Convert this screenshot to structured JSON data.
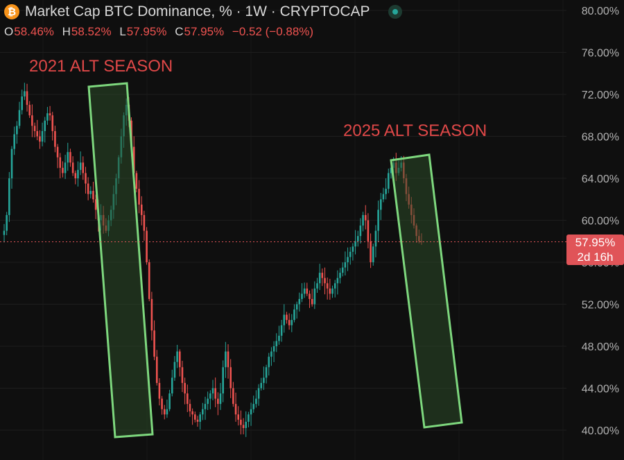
{
  "header": {
    "coin_icon": "bitcoin-icon",
    "coin_glyph": "₿",
    "coin_color": "#f7931a",
    "title": "Market Cap BTC Dominance, % · 1W · CRYPTOCAP",
    "status_dot_color": "#26a69a"
  },
  "ohlc": {
    "o_label": "O",
    "o_value": "58.46%",
    "h_label": "H",
    "h_value": "58.52%",
    "l_label": "L",
    "l_value": "57.95%",
    "c_label": "C",
    "c_value": "57.95%",
    "change": "−0.52 (−0.88%)"
  },
  "price_tag": {
    "price": "57.95%",
    "countdown": "2d 16h",
    "color": "#e05458"
  },
  "annotations": {
    "alt_2021": "2021 ALT SEASON",
    "alt_2025": "2025 ALT SEASON",
    "text_color": "#e04848",
    "box_stroke": "#7ed87e",
    "box_fill": "#2c4a28"
  },
  "colors": {
    "up": "#26a69a",
    "down": "#ef5350",
    "text": "#d9d9d9",
    "axis_text": "#b2b2b2"
  },
  "chart_data": {
    "type": "candlestick",
    "title": "Market Cap BTC Dominance, % · 1W · CRYPTOCAP",
    "interval": "1W",
    "ylim": [
      39,
      82
    ],
    "y_ticks": [
      "80.00%",
      "76.00%",
      "72.00%",
      "68.00%",
      "64.00%",
      "60.00%",
      "56.00%",
      "52.00%",
      "48.00%",
      "44.00%",
      "40.00%"
    ],
    "last_price": 57.95,
    "grid": true,
    "close_series": [
      59.0,
      60.5,
      64.0,
      66.8,
      68.2,
      69.0,
      70.5,
      71.8,
      72.3,
      71.0,
      70.0,
      69.0,
      68.5,
      68.0,
      67.5,
      68.5,
      69.5,
      70.2,
      70.0,
      68.5,
      67.0,
      66.0,
      65.0,
      64.5,
      65.5,
      66.5,
      65.5,
      64.5,
      64.0,
      64.8,
      65.5,
      64.5,
      63.5,
      62.5,
      62.8,
      62.0,
      61.0,
      60.0,
      60.5,
      59.5,
      59.0,
      60.0,
      61.0,
      62.5,
      64.0,
      66.0,
      68.0,
      70.0,
      71.0,
      69.5,
      67.0,
      64.5,
      63.0,
      61.5,
      60.5,
      59.0,
      56.0,
      52.5,
      49.5,
      47.0,
      44.5,
      43.0,
      42.0,
      41.5,
      42.0,
      43.5,
      45.0,
      46.5,
      47.5,
      46.0,
      44.5,
      43.5,
      42.5,
      41.8,
      41.5,
      41.0,
      40.8,
      41.5,
      42.0,
      42.5,
      43.0,
      43.5,
      44.0,
      43.0,
      42.5,
      43.5,
      46.0,
      47.5,
      46.0,
      44.0,
      42.5,
      41.5,
      41.0,
      40.5,
      40.2,
      40.8,
      41.5,
      42.0,
      42.5,
      43.0,
      44.0,
      44.5,
      45.0,
      46.0,
      47.0,
      47.5,
      48.0,
      48.5,
      49.0,
      50.0,
      51.0,
      50.5,
      50.0,
      50.5,
      51.5,
      52.0,
      52.5,
      53.0,
      53.5,
      53.0,
      52.5,
      52.0,
      53.5,
      54.0,
      55.0,
      54.5,
      54.0,
      53.5,
      53.0,
      53.5,
      54.0,
      54.5,
      55.0,
      55.5,
      56.0,
      56.5,
      57.0,
      57.5,
      58.0,
      58.5,
      59.5,
      60.5,
      60.0,
      58.0,
      56.0,
      57.5,
      59.0,
      61.0,
      62.0,
      62.5,
      63.0,
      64.5,
      65.0,
      65.5,
      64.5,
      65.0,
      65.5,
      64.0,
      62.5,
      61.5,
      60.5,
      59.5,
      58.5,
      58.0,
      57.95
    ]
  }
}
